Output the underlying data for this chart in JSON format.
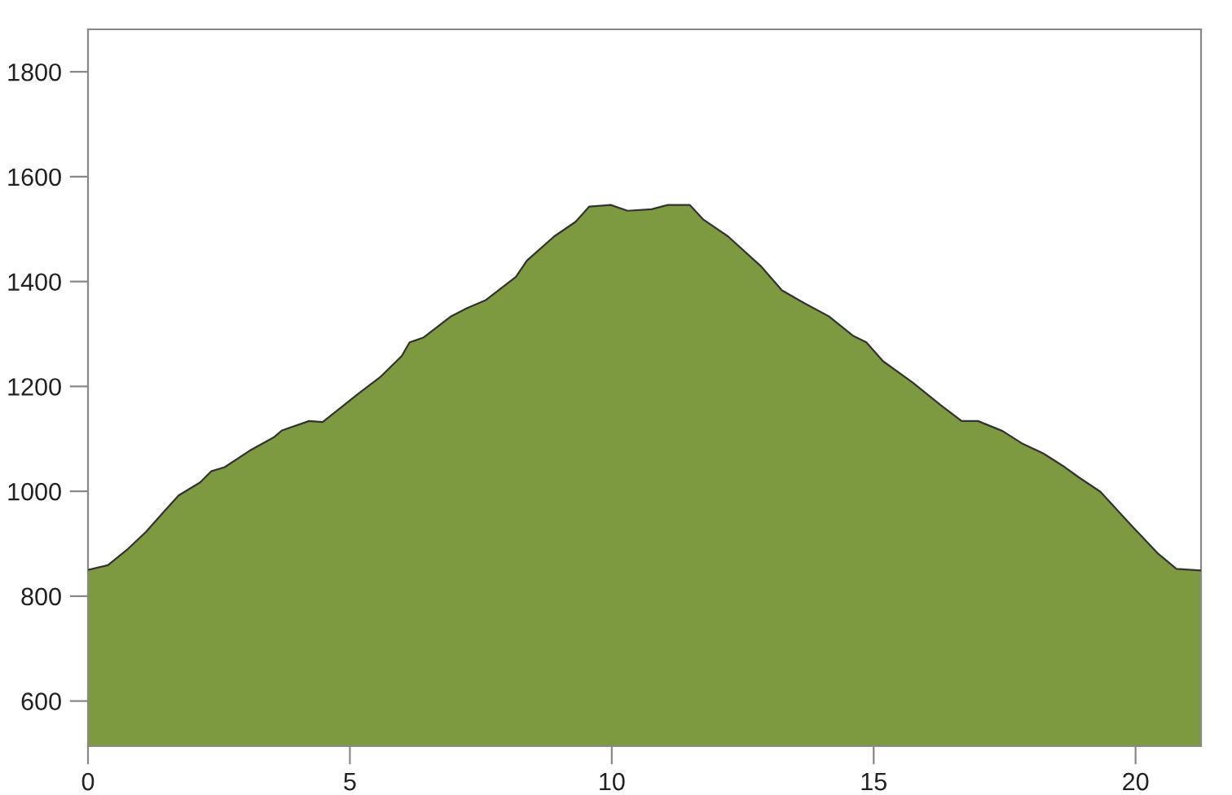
{
  "chart_data": {
    "type": "area",
    "x": [
      0,
      0.38,
      0.74,
      1.11,
      1.42,
      1.73,
      2.14,
      2.35,
      2.61,
      3.08,
      3.55,
      3.7,
      4.22,
      4.48,
      5.16,
      5.57,
      5.99,
      6.14,
      6.4,
      6.92,
      7.23,
      7.6,
      8.17,
      8.38,
      8.9,
      9.31,
      9.57,
      9.98,
      10.3,
      10.76,
      11.07,
      11.49,
      11.75,
      12.22,
      12.84,
      13.25,
      13.67,
      14.14,
      14.6,
      14.86,
      15.18,
      15.75,
      16.27,
      16.68,
      16.99,
      17.46,
      17.82,
      18.24,
      18.65,
      18.91,
      19.33,
      19.9,
      20.42,
      20.78,
      21.25
    ],
    "series": [
      {
        "color": "#7e9a40",
        "values": [
          850,
          859,
          888,
          923,
          958,
          992,
          1017,
          1038,
          1046,
          1077,
          1103,
          1116,
          1134,
          1132,
          1186,
          1217,
          1258,
          1284,
          1293,
          1333,
          1349,
          1365,
          1409,
          1440,
          1486,
          1514,
          1543,
          1546,
          1535,
          1538,
          1546,
          1546,
          1518,
          1486,
          1430,
          1383,
          1359,
          1334,
          1297,
          1284,
          1248,
          1207,
          1165,
          1134,
          1134,
          1115,
          1092,
          1072,
          1046,
          1027,
          999,
          937,
          882,
          852,
          849
        ]
      }
    ],
    "xlim": [
      0,
      21.25
    ],
    "ylim": [
      514,
      1881
    ],
    "xticks": [
      0,
      5,
      10,
      15,
      20
    ],
    "yticks": [
      600,
      800,
      1000,
      1200,
      1400,
      1600,
      1800
    ],
    "grid": false,
    "legend": false
  }
}
